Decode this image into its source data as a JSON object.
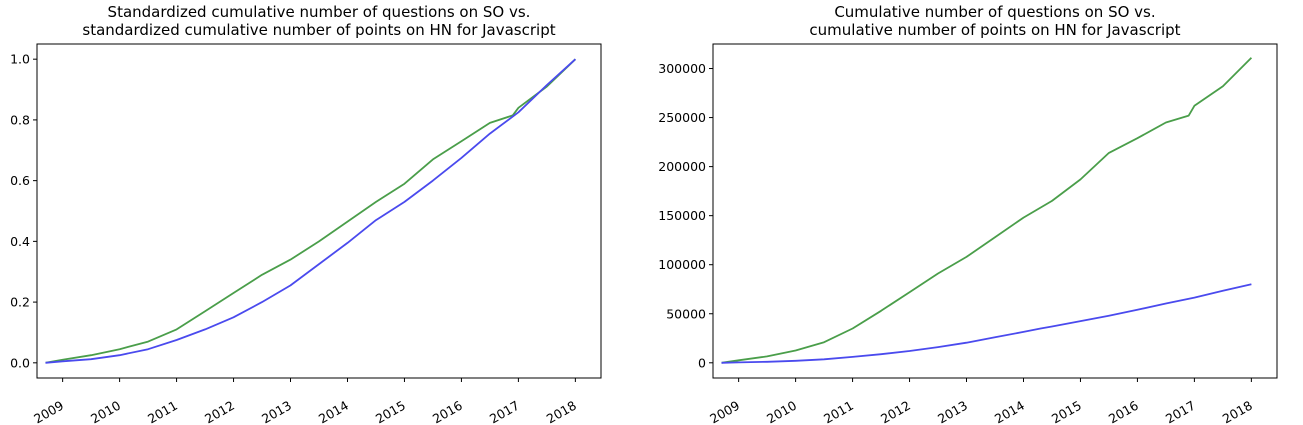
{
  "chart_data": [
    {
      "type": "line",
      "title_lines": [
        "Standardized cumulative number of questions on SO vs.",
        "standardized cumulative number of points on HN for Javascript"
      ],
      "xlabel": "",
      "ylabel": "",
      "xlim": [
        2008.55,
        2018.45
      ],
      "ylim": [
        -0.05,
        1.05
      ],
      "x_ticks": [
        2009,
        2010,
        2011,
        2012,
        2013,
        2014,
        2015,
        2016,
        2017,
        2018
      ],
      "x_tick_labels": [
        "2009",
        "2010",
        "2011",
        "2012",
        "2013",
        "2014",
        "2015",
        "2016",
        "2017",
        "2018"
      ],
      "y_ticks": [
        0,
        0.2,
        0.4,
        0.6,
        0.8,
        1.0
      ],
      "y_tick_labels": [
        "0.0",
        "0.2",
        "0.4",
        "0.6",
        "0.8",
        "1.0"
      ],
      "grid": false,
      "series": [
        {
          "color": "#4a9e4a",
          "x": [
            2008.7,
            2009.0,
            2009.5,
            2010.0,
            2010.5,
            2011.0,
            2011.5,
            2012.0,
            2012.5,
            2013.0,
            2013.5,
            2014.0,
            2014.5,
            2015.0,
            2015.5,
            2016.0,
            2016.5,
            2016.9,
            2017.0,
            2017.5,
            2018.0
          ],
          "y": [
            0.0,
            0.01,
            0.025,
            0.045,
            0.07,
            0.11,
            0.17,
            0.23,
            0.29,
            0.34,
            0.4,
            0.465,
            0.53,
            0.59,
            0.67,
            0.73,
            0.79,
            0.815,
            0.84,
            0.91,
            1.0
          ]
        },
        {
          "color": "#4a4aee",
          "x": [
            2008.7,
            2009.0,
            2009.5,
            2010.0,
            2010.5,
            2011.0,
            2011.5,
            2012.0,
            2012.5,
            2013.0,
            2013.5,
            2014.0,
            2014.3,
            2014.5,
            2015.0,
            2015.5,
            2016.0,
            2016.5,
            2017.0,
            2017.5,
            2018.0
          ],
          "y": [
            0.0,
            0.005,
            0.012,
            0.025,
            0.045,
            0.075,
            0.11,
            0.15,
            0.2,
            0.255,
            0.325,
            0.395,
            0.44,
            0.47,
            0.53,
            0.6,
            0.675,
            0.755,
            0.825,
            0.915,
            1.0
          ]
        }
      ]
    },
    {
      "type": "line",
      "title_lines": [
        "Cumulative number of questions on SO vs.",
        "cumulative number of points on HN for Javascript"
      ],
      "xlabel": "",
      "ylabel": "",
      "xlim": [
        2008.55,
        2018.45
      ],
      "ylim": [
        -15500,
        325000
      ],
      "x_ticks": [
        2009,
        2010,
        2011,
        2012,
        2013,
        2014,
        2015,
        2016,
        2017,
        2018
      ],
      "x_tick_labels": [
        "2009",
        "2010",
        "2011",
        "2012",
        "2013",
        "2014",
        "2015",
        "2016",
        "2017",
        "2018"
      ],
      "y_ticks": [
        0,
        50000,
        100000,
        150000,
        200000,
        250000,
        300000
      ],
      "y_tick_labels": [
        "0",
        "50000",
        "100000",
        "150000",
        "200000",
        "250000",
        "300000"
      ],
      "grid": false,
      "series": [
        {
          "color": "#4a9e4a",
          "x": [
            2008.7,
            2009.0,
            2009.5,
            2010.0,
            2010.5,
            2011.0,
            2011.5,
            2012.0,
            2012.5,
            2013.0,
            2013.5,
            2014.0,
            2014.5,
            2015.0,
            2015.5,
            2016.0,
            2016.5,
            2016.9,
            2017.0,
            2017.5,
            2018.0
          ],
          "y": [
            0,
            2500,
            6500,
            12500,
            21000,
            35000,
            53000,
            72000,
            91000,
            108000,
            128000,
            148000,
            165000,
            187000,
            214000,
            229000,
            245000,
            252000,
            262000,
            282000,
            311000
          ]
        },
        {
          "color": "#4a4aee",
          "x": [
            2008.7,
            2009.0,
            2009.5,
            2010.0,
            2010.5,
            2011.0,
            2011.5,
            2012.0,
            2012.5,
            2013.0,
            2013.5,
            2014.0,
            2014.3,
            2014.5,
            2015.0,
            2015.5,
            2016.0,
            2016.5,
            2017.0,
            2017.5,
            2018.0
          ],
          "y": [
            0,
            400,
            1000,
            2000,
            3600,
            6000,
            8800,
            12000,
            16000,
            20500,
            26000,
            31500,
            35000,
            37000,
            42500,
            48000,
            54000,
            60500,
            66500,
            73500,
            80000
          ]
        }
      ]
    }
  ]
}
